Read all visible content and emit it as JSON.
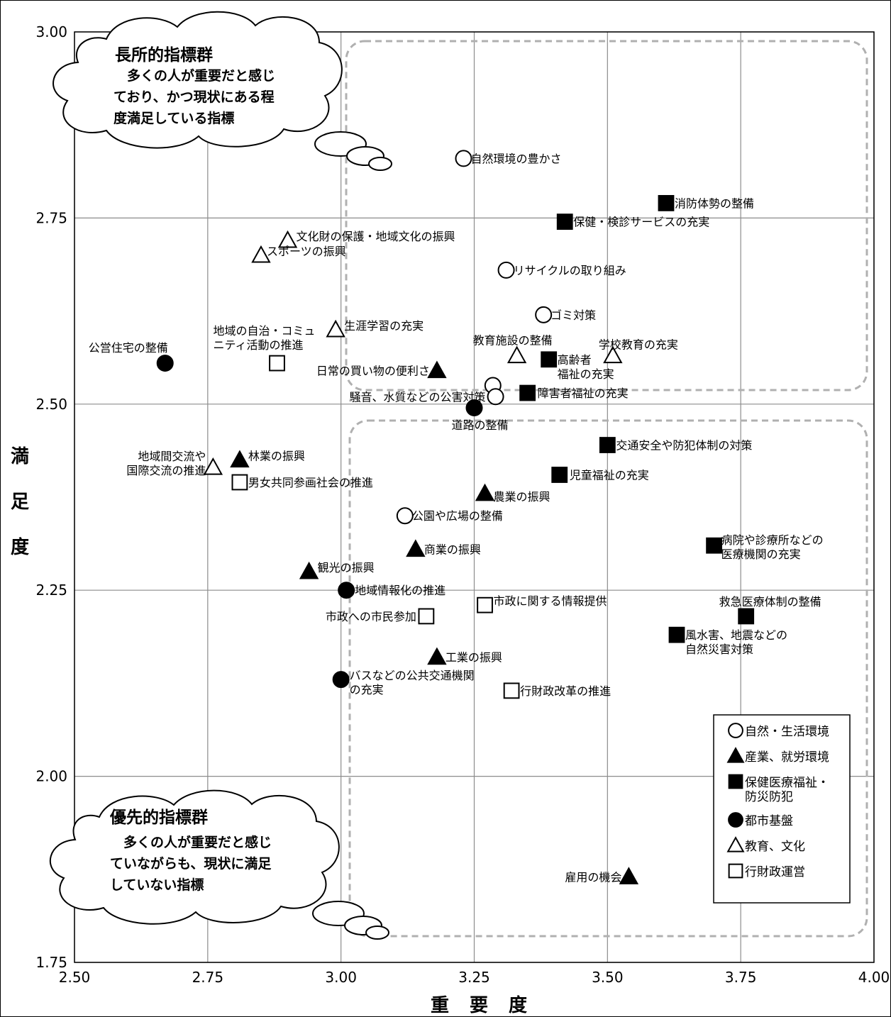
{
  "chart_data": {
    "type": "scatter",
    "xlabel": "重 要 度",
    "ylabel": "満足度",
    "xlim": [
      2.5,
      4.0
    ],
    "ylim": [
      1.75,
      3.0
    ],
    "xticks": [
      "2.50",
      "2.75",
      "3.00",
      "3.25",
      "3.50",
      "3.75",
      "4.00"
    ],
    "yticks": [
      "1.75",
      "2.00",
      "2.25",
      "2.50",
      "2.75",
      "3.00"
    ],
    "grid": true,
    "legend_position": "bottom-right",
    "series": [
      {
        "name": "自然・生活環境",
        "marker": "circle-open",
        "points": [
          {
            "label": "自然環境の豊かさ",
            "x": 3.23,
            "y": 2.83
          },
          {
            "label": "リサイクルの取り組み",
            "x": 3.31,
            "y": 2.68
          },
          {
            "label": "ゴミ対策",
            "x": 3.38,
            "y": 2.62
          },
          {
            "label": "",
            "x": 3.285,
            "y": 2.525
          },
          {
            "label": "騒音、水質などの公害対策",
            "x": 3.29,
            "y": 2.51
          },
          {
            "label": "公園や広場の整備",
            "x": 3.12,
            "y": 2.35
          }
        ]
      },
      {
        "name": "産業、就労環境",
        "marker": "triangle-filled",
        "points": [
          {
            "label": "日常の買い物の便利さ",
            "x": 3.18,
            "y": 2.545
          },
          {
            "label": "林業の振興",
            "x": 2.81,
            "y": 2.425
          },
          {
            "label": "農業の振興",
            "x": 3.27,
            "y": 2.38
          },
          {
            "label": "商業の振興",
            "x": 3.14,
            "y": 2.305
          },
          {
            "label": "観光の振興",
            "x": 2.94,
            "y": 2.275
          },
          {
            "label": "工業の振興",
            "x": 3.18,
            "y": 2.16
          },
          {
            "label": "雇用の機会",
            "x": 3.54,
            "y": 1.865
          }
        ]
      },
      {
        "name": "保健医療福祉・防災防犯",
        "marker": "square-filled",
        "points": [
          {
            "label": "消防体勢の整備",
            "x": 3.61,
            "y": 2.77
          },
          {
            "label": "保健・検診サービスの充実",
            "x": 3.42,
            "y": 2.745
          },
          {
            "label": "高齢者\n福祉の充実",
            "x": 3.39,
            "y": 2.56
          },
          {
            "label": "障害者福祉の充実",
            "x": 3.35,
            "y": 2.515
          },
          {
            "label": "交通安全や防犯体制の対策",
            "x": 3.5,
            "y": 2.445
          },
          {
            "label": "児童福祉の充実",
            "x": 3.41,
            "y": 2.405
          },
          {
            "label": "病院や診療所などの\n医療機関の充実",
            "x": 3.7,
            "y": 2.31
          },
          {
            "label": "救急医療体制の整備",
            "x": 3.76,
            "y": 2.215
          },
          {
            "label": "風水害、地震などの\n自然災害対策",
            "x": 3.63,
            "y": 2.19
          }
        ]
      },
      {
        "name": "都市基盤",
        "marker": "circle-filled",
        "points": [
          {
            "label": "公営住宅の整備",
            "x": 2.67,
            "y": 2.555
          },
          {
            "label": "道路の整備",
            "x": 3.25,
            "y": 2.495
          },
          {
            "label": "地域情報化の推進",
            "x": 3.01,
            "y": 2.25
          },
          {
            "label": "バスなどの公共交通機関\nの充実",
            "x": 3.0,
            "y": 2.13
          }
        ]
      },
      {
        "name": "教育、文化",
        "marker": "triangle-open",
        "points": [
          {
            "label": "文化財の保護・地域文化の振興",
            "x": 2.9,
            "y": 2.72
          },
          {
            "label": "スポーツの振興",
            "x": 2.85,
            "y": 2.7
          },
          {
            "label": "生涯学習の充実",
            "x": 2.99,
            "y": 2.6
          },
          {
            "label": "教育施設の整備",
            "x": 3.33,
            "y": 2.565
          },
          {
            "label": "学校教育の充実",
            "x": 3.51,
            "y": 2.565
          },
          {
            "label": "地域間交流や\n国際交流の推進",
            "x": 2.76,
            "y": 2.415
          }
        ]
      },
      {
        "name": "行財政運営",
        "marker": "square-open",
        "points": [
          {
            "label": "地域の自治・コミュ\nニティ活動の推進",
            "x": 2.88,
            "y": 2.555
          },
          {
            "label": "男女共同参画社会の推進",
            "x": 2.81,
            "y": 2.395
          },
          {
            "label": "市政に関する情報提供",
            "x": 3.27,
            "y": 2.23
          },
          {
            "label": "市政への市民参加",
            "x": 3.16,
            "y": 2.215
          },
          {
            "label": "行財政改革の推進",
            "x": 3.32,
            "y": 2.115
          }
        ]
      }
    ],
    "annotations": [
      {
        "title": "長所的指標群",
        "lines": [
          "　多くの人が重要だと感じ",
          "ており、かつ現状にある程",
          "度満足している指標"
        ]
      },
      {
        "title": "優先的指標群",
        "lines": [
          "　多くの人が重要だと感じ",
          "ていながらも、現状に満足",
          "していない指標"
        ]
      }
    ]
  }
}
